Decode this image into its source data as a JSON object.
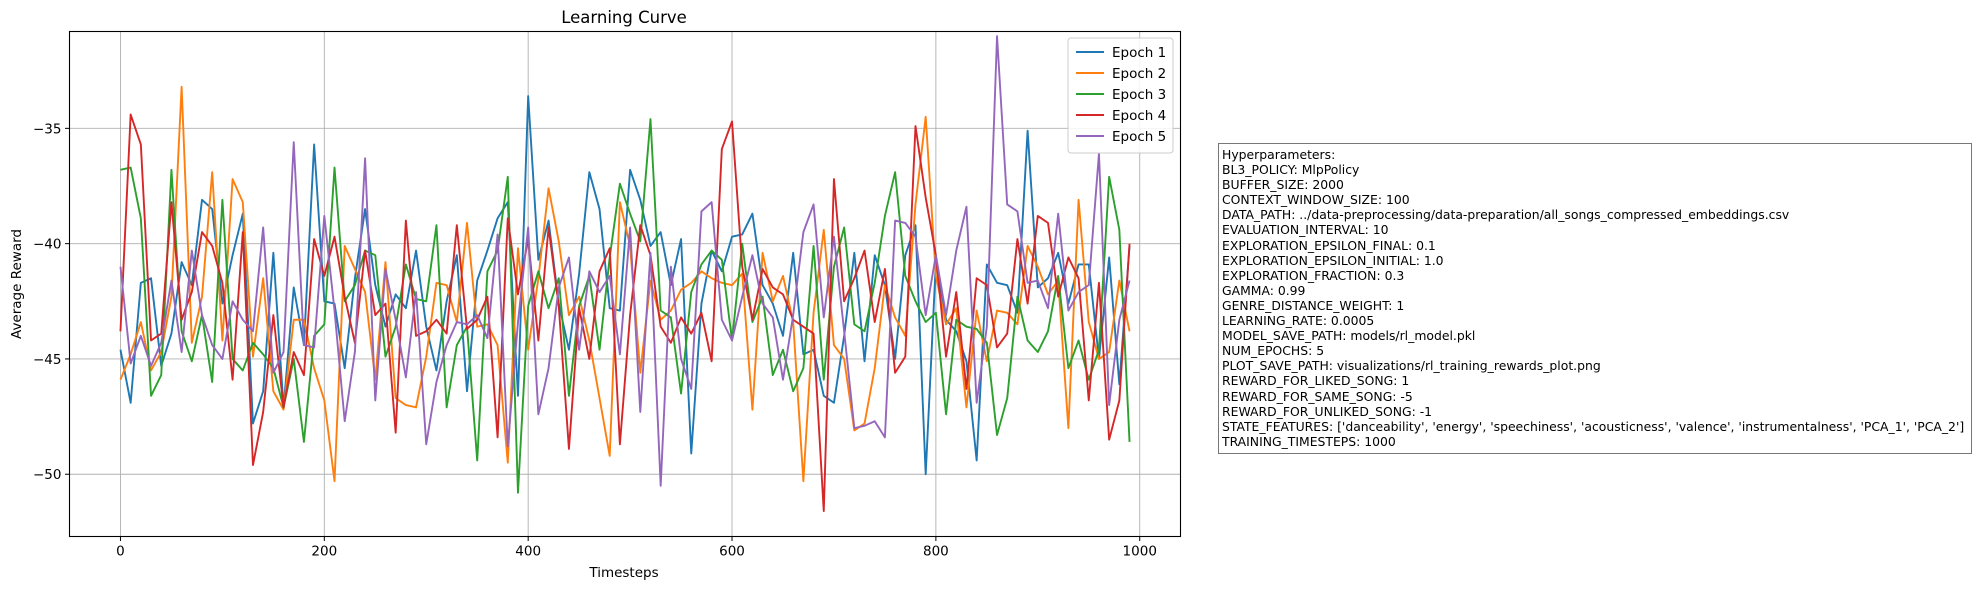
{
  "chart_data": {
    "type": "line",
    "title": "Learning Curve",
    "xlabel": "Timesteps",
    "ylabel": "Average Reward",
    "xlim": [
      -50,
      1040
    ],
    "ylim": [
      -52.7,
      -30.8
    ],
    "xticks": [
      0,
      200,
      400,
      600,
      800,
      1000
    ],
    "yticks": [
      -50,
      -45,
      -40,
      -35
    ],
    "xtick_labels": [
      "0",
      "200",
      "400",
      "600",
      "800",
      "1000"
    ],
    "ytick_labels": [
      "−50",
      "−45",
      "−40",
      "−35"
    ],
    "grid": true,
    "legend_position": "top-right",
    "x": [
      0,
      10,
      20,
      30,
      40,
      50,
      60,
      70,
      80,
      90,
      100,
      110,
      120,
      130,
      140,
      150,
      160,
      170,
      180,
      190,
      200,
      210,
      220,
      230,
      240,
      250,
      260,
      270,
      280,
      290,
      300,
      310,
      320,
      330,
      340,
      350,
      360,
      370,
      380,
      390,
      400,
      410,
      420,
      430,
      440,
      450,
      460,
      470,
      480,
      490,
      500,
      510,
      520,
      530,
      540,
      550,
      560,
      570,
      580,
      590,
      600,
      610,
      620,
      630,
      640,
      650,
      660,
      670,
      680,
      690,
      700,
      710,
      720,
      730,
      740,
      750,
      760,
      770,
      780,
      790,
      800,
      810,
      820,
      830,
      840,
      850,
      860,
      870,
      880,
      890,
      900,
      910,
      920,
      930,
      940,
      950,
      960,
      970,
      980,
      990
    ],
    "series": [
      {
        "name": "Epoch 1",
        "color": "#1f77b4",
        "values": [
          -44.6,
          -46.9,
          -41.7,
          -41.5,
          -45.3,
          -43.9,
          -40.8,
          -41.8,
          -38.1,
          -38.5,
          -42.6,
          -40.5,
          -38.7,
          -47.8,
          -46.4,
          -40.4,
          -47.1,
          -41.9,
          -44.4,
          -35.7,
          -42.5,
          -42.6,
          -45.4,
          -41.5,
          -38.5,
          -41.8,
          -43.6,
          -42.2,
          -42.8,
          -40.3,
          -43.6,
          -45.5,
          -42.5,
          -40.5,
          -46.4,
          -41.6,
          -40.3,
          -38.9,
          -38.2,
          -46.6,
          -33.6,
          -40.7,
          -39.0,
          -42.6,
          -44.6,
          -41.3,
          -36.9,
          -38.5,
          -42.8,
          -42.9,
          -36.8,
          -38.1,
          -40.1,
          -39.5,
          -41.8,
          -39.8,
          -49.1,
          -42.6,
          -40.3,
          -41.2,
          -39.7,
          -39.6,
          -38.7,
          -41.8,
          -42.6,
          -44.0,
          -40.4,
          -44.8,
          -44.6,
          -46.6,
          -46.9,
          -44.0,
          -40.4,
          -45.1,
          -40.5,
          -41.8,
          -45.0,
          -40.5,
          -39.2,
          -50.0,
          -40.8,
          -43.3,
          -43.8,
          -45.1,
          -49.4,
          -40.9,
          -41.7,
          -41.8,
          -43.0,
          -35.1,
          -41.9,
          -41.5,
          -40.4,
          -42.6,
          -40.9,
          -40.9,
          -45.0,
          -40.6,
          -46.1,
          -40.1
        ]
      },
      {
        "name": "Epoch 2",
        "color": "#ff7f0e",
        "values": [
          -45.9,
          -44.8,
          -43.4,
          -45.5,
          -44.7,
          -42.3,
          -33.2,
          -44.3,
          -42.3,
          -36.9,
          -44.2,
          -37.2,
          -38.2,
          -44.9,
          -41.5,
          -46.4,
          -47.2,
          -43.3,
          -43.3,
          -45.4,
          -46.8,
          -50.3,
          -40.1,
          -41.1,
          -42.1,
          -45.9,
          -40.8,
          -46.7,
          -47.0,
          -47.1,
          -44.9,
          -41.7,
          -41.8,
          -43.4,
          -39.1,
          -43.6,
          -43.5,
          -44.4,
          -49.5,
          -40.2,
          -44.6,
          -41.5,
          -37.6,
          -39.9,
          -43.1,
          -42.3,
          -44.2,
          -46.7,
          -49.2,
          -38.2,
          -40.1,
          -45.6,
          -41.6,
          -43.3,
          -42.9,
          -42.0,
          -41.7,
          -41.2,
          -41.5,
          -41.7,
          -41.8,
          -41.3,
          -47.2,
          -40.4,
          -42.5,
          -41.4,
          -43.4,
          -50.3,
          -43.0,
          -39.4,
          -44.4,
          -45.0,
          -48.1,
          -47.8,
          -45.4,
          -41.8,
          -43.2,
          -44.0,
          -38.3,
          -34.5,
          -41.4,
          -43.5,
          -42.8,
          -47.1,
          -42.9,
          -45.1,
          -42.9,
          -43.0,
          -43.5,
          -40.1,
          -41.0,
          -42.2,
          -41.6,
          -48.0,
          -38.1,
          -43.4,
          -45.0,
          -44.7,
          -41.6,
          -43.8
        ]
      },
      {
        "name": "Epoch 3",
        "color": "#2ca02c",
        "values": [
          -36.8,
          -36.7,
          -38.9,
          -46.6,
          -45.7,
          -36.8,
          -43.8,
          -45.1,
          -43.1,
          -46.0,
          -38.1,
          -45.0,
          -45.5,
          -44.3,
          -44.8,
          -45.4,
          -47.1,
          -45.0,
          -48.6,
          -44.0,
          -43.5,
          -36.7,
          -42.5,
          -41.8,
          -40.3,
          -40.5,
          -44.9,
          -43.6,
          -40.9,
          -42.4,
          -42.5,
          -39.2,
          -47.1,
          -44.4,
          -43.6,
          -49.4,
          -41.2,
          -40.3,
          -37.1,
          -50.8,
          -42.7,
          -41.2,
          -42.8,
          -41.5,
          -46.6,
          -42.7,
          -41.4,
          -44.6,
          -40.6,
          -37.4,
          -38.7,
          -39.9,
          -34.6,
          -42.9,
          -43.2,
          -46.5,
          -42.1,
          -40.9,
          -40.3,
          -40.7,
          -44.2,
          -40.0,
          -43.4,
          -42.3,
          -45.7,
          -44.6,
          -46.4,
          -45.4,
          -40.1,
          -45.9,
          -41.0,
          -39.3,
          -43.5,
          -43.8,
          -41.7,
          -38.8,
          -36.9,
          -41.4,
          -42.5,
          -43.4,
          -43.0,
          -47.4,
          -43.3,
          -43.6,
          -43.7,
          -44.3,
          -48.3,
          -46.7,
          -42.3,
          -44.2,
          -44.7,
          -43.8,
          -41.4,
          -45.4,
          -44.2,
          -45.9,
          -44.6,
          -37.1,
          -39.4,
          -48.6
        ]
      },
      {
        "name": "Epoch 4",
        "color": "#d62728",
        "values": [
          -43.8,
          -34.4,
          -35.7,
          -44.2,
          -43.9,
          -38.2,
          -43.3,
          -42.1,
          -39.5,
          -40.1,
          -41.7,
          -45.9,
          -39.5,
          -49.6,
          -47.3,
          -43.1,
          -47.1,
          -44.7,
          -45.7,
          -39.8,
          -41.4,
          -39.7,
          -42.3,
          -44.3,
          -40.3,
          -43.1,
          -42.6,
          -48.2,
          -39.0,
          -44.0,
          -43.8,
          -43.3,
          -43.9,
          -39.2,
          -43.7,
          -43.3,
          -42.3,
          -48.4,
          -38.9,
          -42.2,
          -39.8,
          -44.2,
          -39.3,
          -42.7,
          -48.9,
          -42.8,
          -45.0,
          -41.2,
          -40.2,
          -48.7,
          -43.1,
          -39.2,
          -40.5,
          -43.6,
          -44.3,
          -43.2,
          -43.9,
          -43.0,
          -45.1,
          -35.9,
          -34.7,
          -41.0,
          -43.3,
          -41.1,
          -41.9,
          -42.2,
          -43.3,
          -43.6,
          -43.9,
          -51.6,
          -37.2,
          -42.5,
          -41.5,
          -40.3,
          -43.4,
          -41.1,
          -45.6,
          -44.9,
          -34.9,
          -38.0,
          -40.5,
          -44.9,
          -42.1,
          -46.3,
          -41.5,
          -41.8,
          -44.5,
          -43.9,
          -39.8,
          -42.6,
          -38.8,
          -39.1,
          -42.3,
          -40.6,
          -41.5,
          -46.8,
          -41.7,
          -48.5,
          -46.8,
          -40.0
        ]
      },
      {
        "name": "Epoch 5",
        "color": "#9467bd",
        "values": [
          -41.0,
          -45.2,
          -44.0,
          -45.3,
          -44.3,
          -41.6,
          -44.7,
          -40.3,
          -43.1,
          -44.4,
          -45.0,
          -42.5,
          -43.3,
          -43.8,
          -39.3,
          -45.6,
          -44.7,
          -35.6,
          -44.4,
          -44.5,
          -38.8,
          -42.9,
          -47.7,
          -44.7,
          -36.3,
          -46.8,
          -41.1,
          -43.3,
          -45.8,
          -42.1,
          -48.7,
          -46.0,
          -44.4,
          -43.4,
          -43.5,
          -43.1,
          -44.1,
          -39.6,
          -48.8,
          -43.4,
          -39.3,
          -47.4,
          -45.4,
          -41.9,
          -40.6,
          -44.6,
          -41.2,
          -42.1,
          -41.4,
          -44.8,
          -39.3,
          -47.3,
          -40.4,
          -50.5,
          -41.0,
          -45.0,
          -46.3,
          -38.6,
          -38.2,
          -43.3,
          -44.2,
          -42.3,
          -40.5,
          -42.6,
          -43.2,
          -45.9,
          -43.1,
          -39.5,
          -38.3,
          -43.2,
          -39.7,
          -43.8,
          -48.0,
          -47.9,
          -47.7,
          -48.4,
          -39.0,
          -39.1,
          -39.7,
          -43.1,
          -40.5,
          -43.1,
          -40.3,
          -38.4,
          -46.9,
          -43.6,
          -31.0,
          -38.3,
          -38.6,
          -41.7,
          -41.6,
          -42.8,
          -38.7,
          -42.9,
          -42.1,
          -41.8,
          -36.1,
          -47.0,
          -43.3,
          -41.6
        ]
      }
    ]
  },
  "hyperparameters_box": {
    "lines": [
      "Hyperparameters:",
      "BL3_POLICY: MlpPolicy",
      "BUFFER_SIZE: 2000",
      "CONTEXT_WINDOW_SIZE: 100",
      "DATA_PATH: ../data-preprocessing/data-preparation/all_songs_compressed_embeddings.csv",
      "EVALUATION_INTERVAL: 10",
      "EXPLORATION_EPSILON_FINAL: 0.1",
      "EXPLORATION_EPSILON_INITIAL: 1.0",
      "EXPLORATION_FRACTION: 0.3",
      "GAMMA: 0.99",
      "GENRE_DISTANCE_WEIGHT: 1",
      "LEARNING_RATE: 0.0005",
      "MODEL_SAVE_PATH: models/rl_model.pkl",
      "NUM_EPOCHS: 5",
      "PLOT_SAVE_PATH: visualizations/rl_training_rewards_plot.png",
      "REWARD_FOR_LIKED_SONG: 1",
      "REWARD_FOR_SAME_SONG: -5",
      "REWARD_FOR_UNLIKED_SONG: -1",
      "STATE_FEATURES: ['danceability', 'energy', 'speechiness', 'acousticness', 'valence', 'instrumentalness', 'PCA_1', 'PCA_2']",
      "TRAINING_TIMESTEPS: 1000"
    ]
  }
}
